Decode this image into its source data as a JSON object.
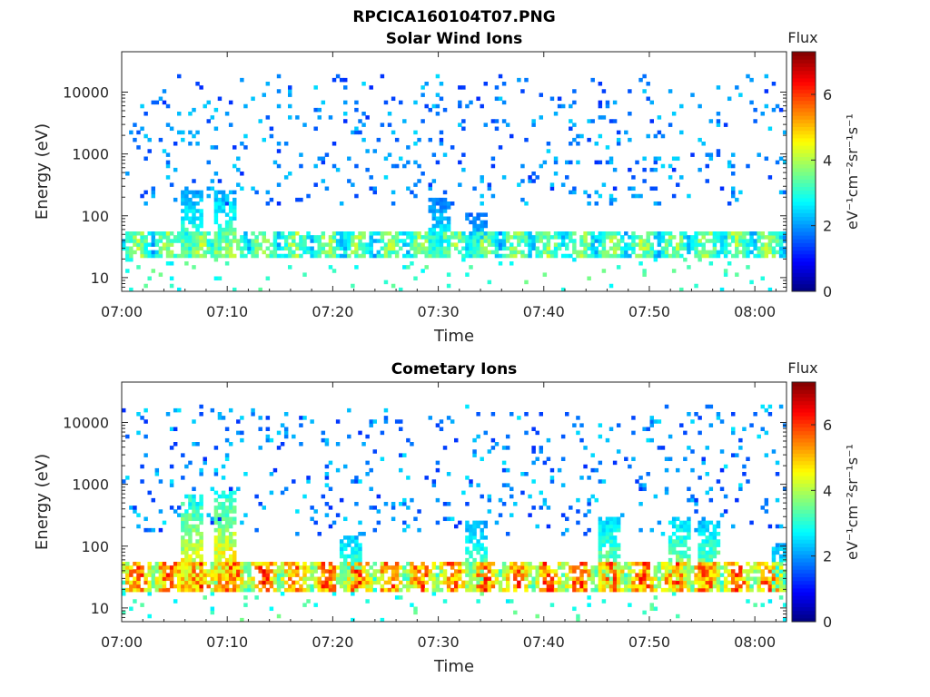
{
  "figure_title": "RPCICA160104T07.PNG",
  "chart_data": [
    {
      "type": "heatmap",
      "title": "Solar Wind Ions",
      "xlabel": "Time",
      "ylabel": "Energy (eV)",
      "x_ticks": [
        "07:00",
        "07:10",
        "07:20",
        "07:30",
        "07:40",
        "07:50",
        "08:00"
      ],
      "x_range_minutes": [
        0,
        63
      ],
      "y_scale": "log",
      "y_ticks": [
        10,
        100,
        1000,
        10000
      ],
      "y_tick_labels": [
        "10",
        "100",
        "1000",
        "10000"
      ],
      "ylim": [
        6,
        45000
      ],
      "colorbar": {
        "label": "Flux",
        "units": "eV⁻¹cm⁻²sr⁻¹s⁻¹",
        "ticks": [
          "0",
          "2",
          "4",
          "6"
        ],
        "range": [
          0,
          7.3
        ]
      },
      "colormap": "jet",
      "grid": false,
      "low_band": {
        "energy_range_eV": [
          22,
          55
        ],
        "typical_flux": 4.0
      },
      "streaks": [
        {
          "t_min": 6.0,
          "e_top_eV": 250,
          "flux": 3.8
        },
        {
          "t_min": 9.0,
          "e_top_eV": 260,
          "flux": 3.9
        },
        {
          "t_min": 29.5,
          "e_top_eV": 200,
          "flux": 3.2
        },
        {
          "t_min": 33.0,
          "e_top_eV": 110,
          "flux": 3.0
        }
      ],
      "high_energy_scatter": {
        "energy_range_eV": [
          150,
          20000
        ],
        "flux_range": [
          1.2,
          2.5
        ]
      }
    },
    {
      "type": "heatmap",
      "title": "Cometary Ions",
      "xlabel": "Time",
      "ylabel": "Energy (eV)",
      "x_ticks": [
        "07:00",
        "07:10",
        "07:20",
        "07:30",
        "07:40",
        "07:50",
        "08:00"
      ],
      "x_range_minutes": [
        0,
        63
      ],
      "y_scale": "log",
      "y_ticks": [
        10,
        100,
        1000,
        10000
      ],
      "y_tick_labels": [
        "10",
        "100",
        "1000",
        "10000"
      ],
      "ylim": [
        6,
        45000
      ],
      "colorbar": {
        "label": "Flux",
        "units": "eV⁻¹cm⁻²sr⁻¹s⁻¹",
        "ticks": [
          "0",
          "2",
          "4",
          "6"
        ],
        "range": [
          0,
          7.3
        ]
      },
      "colormap": "jet",
      "grid": false,
      "low_band": {
        "energy_range_eV": [
          18,
          55
        ],
        "typical_flux": 6.0
      },
      "streaks": [
        {
          "t_min": 6.0,
          "e_top_eV": 700,
          "flux": 5.2
        },
        {
          "t_min": 9.0,
          "e_top_eV": 800,
          "flux": 5.4
        },
        {
          "t_min": 21.0,
          "e_top_eV": 150,
          "flux": 4.2
        },
        {
          "t_min": 33.0,
          "e_top_eV": 250,
          "flux": 4.0
        },
        {
          "t_min": 45.5,
          "e_top_eV": 300,
          "flux": 4.4
        },
        {
          "t_min": 52.0,
          "e_top_eV": 300,
          "flux": 4.5
        },
        {
          "t_min": 55.0,
          "e_top_eV": 250,
          "flux": 4.4
        },
        {
          "t_min": 62.0,
          "e_top_eV": 120,
          "flux": 3.8
        }
      ],
      "high_energy_scatter": {
        "energy_range_eV": [
          150,
          20000
        ],
        "flux_range": [
          1.2,
          2.6
        ]
      }
    }
  ]
}
